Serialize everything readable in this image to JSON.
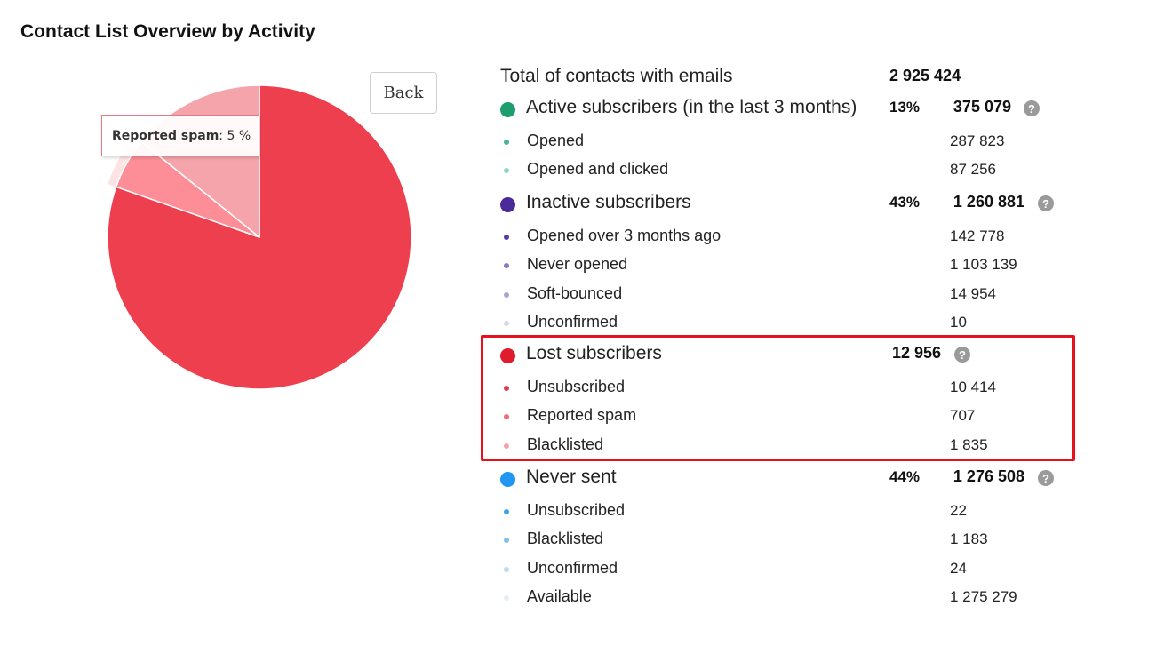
{
  "title": "Contact List Overview by Activity",
  "back_label": "Back",
  "tooltip": {
    "label": "Reported spam",
    "value": ": 5 %"
  },
  "total": {
    "label": "Total of contacts with emails",
    "value": "2 925 424"
  },
  "help_glyph": "?",
  "groups": [
    {
      "label": "Active subscribers (in the last 3 months)",
      "percent": "13%",
      "count": "375 079",
      "color": "#1e9e6e",
      "items": [
        {
          "label": "Opened",
          "count": "287 823",
          "color": "#45b39a"
        },
        {
          "label": "Opened and clicked",
          "count": "87 256",
          "color": "#8fd7c3"
        }
      ]
    },
    {
      "label": "Inactive subscribers",
      "percent": "43%",
      "count": "1 260 881",
      "color": "#4b2a9a",
      "items": [
        {
          "label": "Opened over 3 months ago",
          "count": "142 778",
          "color": "#5b3aa6"
        },
        {
          "label": "Never opened",
          "count": "1 103 139",
          "color": "#8c76c2"
        },
        {
          "label": "Soft-bounced",
          "count": "14 954",
          "color": "#aca3cf"
        },
        {
          "label": "Unconfirmed",
          "count": "10",
          "color": "#d9d5e8"
        }
      ]
    },
    {
      "label": "Lost subscribers",
      "percent": "",
      "count": "12 956",
      "color": "#e01b2b",
      "items": [
        {
          "label": "Unsubscribed",
          "count": "10 414",
          "color": "#e33b4b"
        },
        {
          "label": "Reported spam",
          "count": "707",
          "color": "#ef6b75"
        },
        {
          "label": "Blacklisted",
          "count": "1 835",
          "color": "#f4a1a8"
        }
      ]
    },
    {
      "label": "Never sent",
      "percent": "44%",
      "count": "1 276 508",
      "color": "#2196f3",
      "items": [
        {
          "label": "Unsubscribed",
          "count": "22",
          "color": "#3aa3ea"
        },
        {
          "label": "Blacklisted",
          "count": "1 183",
          "color": "#7fc0ee"
        },
        {
          "label": "Unconfirmed",
          "count": "24",
          "color": "#bcdcf3"
        },
        {
          "label": "Available",
          "count": "1 275 279",
          "color": "#e4eef6"
        }
      ]
    }
  ],
  "chart_data": {
    "type": "pie",
    "title": "",
    "slices": [
      {
        "name": "Unsubscribed",
        "value": 10414,
        "color": "#ee3f4f"
      },
      {
        "name": "Reported spam",
        "value": 707,
        "color": "#fd8e97",
        "highlighted": true
      },
      {
        "name": "Blacklisted",
        "value": 1835,
        "color": "#f6a4ab"
      }
    ]
  }
}
